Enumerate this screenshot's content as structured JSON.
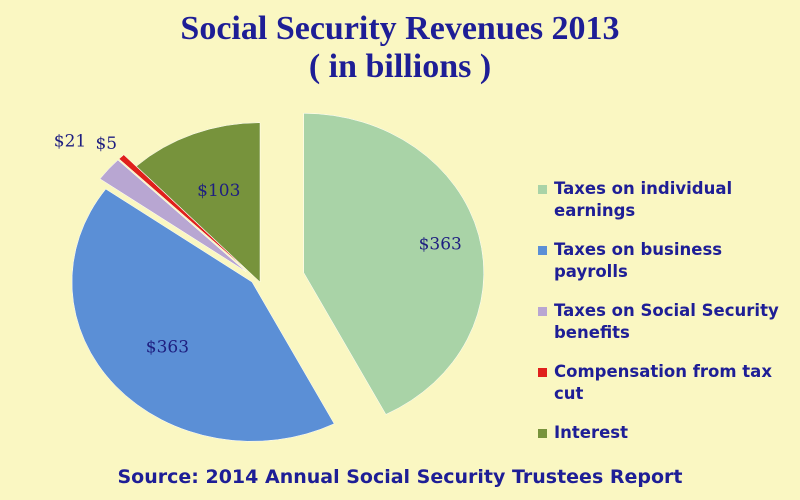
{
  "chart_data": {
    "type": "pie",
    "title": "Social Security Revenues 2013",
    "subtitle": "( in billions )",
    "categories": [
      "Taxes on individual earnings",
      "Taxes on business payrolls",
      "Taxes on Social Security benefits",
      "Compensation from tax cut",
      "Interest"
    ],
    "values": [
      363,
      363,
      21,
      5,
      103
    ],
    "data_labels": [
      "$363",
      "$363",
      "$21",
      "$5",
      "$103"
    ],
    "colors": [
      "#A9D3A7",
      "#5B8FD6",
      "#B8A6D2",
      "#E0201B",
      "#77933C"
    ],
    "exploded": true,
    "legend_position": "right"
  },
  "source": "Source: 2014 Annual Social Security Trustees Report"
}
